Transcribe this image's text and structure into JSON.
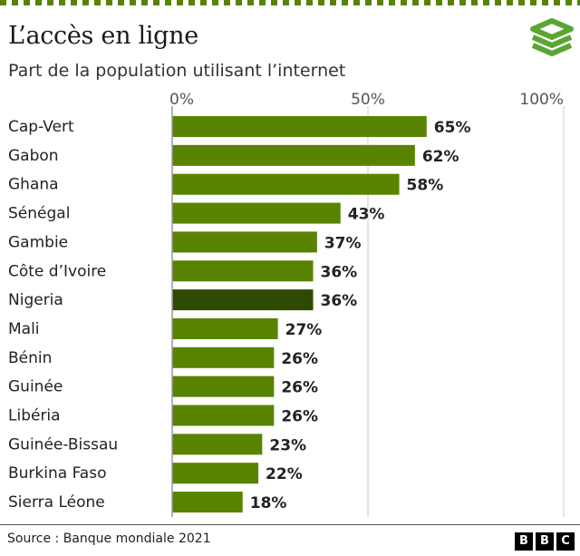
{
  "header": {
    "title": "L’accès en ligne",
    "subtitle": "Part de la population utilisant l’internet"
  },
  "chart_data": {
    "type": "bar",
    "orientation": "horizontal",
    "title": "L’accès en ligne",
    "subtitle": "Part de la population utilisant l’internet",
    "categories": [
      "Cap-Vert",
      "Gabon",
      "Ghana",
      "Sénégal",
      "Gambie",
      "Côte d’Ivoire",
      "Nigeria",
      "Mali",
      "Bénin",
      "Guinée",
      "Libéria",
      "Guinée-Bissau",
      "Burkina Faso",
      "Sierra Léone"
    ],
    "values": [
      65,
      62,
      58,
      43,
      37,
      36,
      36,
      27,
      26,
      26,
      26,
      23,
      22,
      18
    ],
    "value_labels": [
      "65%",
      "62%",
      "58%",
      "43%",
      "37%",
      "36%",
      "36%",
      "27%",
      "26%",
      "26%",
      "26%",
      "23%",
      "22%",
      "18%"
    ],
    "xlim": [
      0,
      100
    ],
    "x_ticks": [
      0,
      50,
      100
    ],
    "x_tick_labels": [
      "0%",
      "50%",
      "100%"
    ],
    "xlabel": "",
    "ylabel": "",
    "grid": true,
    "highlight": "Nigeria",
    "colors": {
      "bar": "#588300",
      "highlight": "#2e4a00"
    }
  },
  "footer": {
    "source": "Source :  Banque mondiale 2021",
    "brand": [
      "B",
      "B",
      "C"
    ]
  },
  "colors": {
    "dash": "#588300",
    "logo": "#5ba533"
  }
}
